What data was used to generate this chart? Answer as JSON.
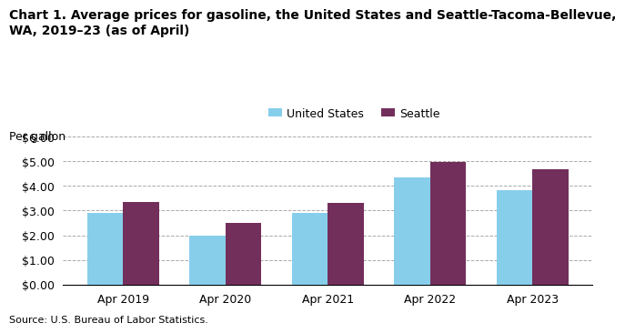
{
  "title_line1": "Chart 1. Average prices for gasoline, the United States and Seattle-Tacoma-Bellevue,",
  "title_line2": "WA, 2019–23 (as of April)",
  "ylabel": "Per gallon",
  "source": "Source: U.S. Bureau of Labor Statistics.",
  "categories": [
    "Apr 2019",
    "Apr 2020",
    "Apr 2021",
    "Apr 2022",
    "Apr 2023"
  ],
  "us_values": [
    2.9,
    1.97,
    2.9,
    4.35,
    3.83
  ],
  "seattle_values": [
    3.35,
    2.5,
    3.32,
    4.97,
    4.68
  ],
  "us_color": "#87CEEB",
  "seattle_color": "#722F5B",
  "ylim": [
    0,
    6.0
  ],
  "yticks": [
    0.0,
    1.0,
    2.0,
    3.0,
    4.0,
    5.0,
    6.0
  ],
  "legend_us": "United States",
  "legend_seattle": "Seattle",
  "bar_width": 0.35,
  "background_color": "#ffffff",
  "title_fontsize": 10,
  "axis_fontsize": 9,
  "tick_fontsize": 9,
  "source_fontsize": 8
}
